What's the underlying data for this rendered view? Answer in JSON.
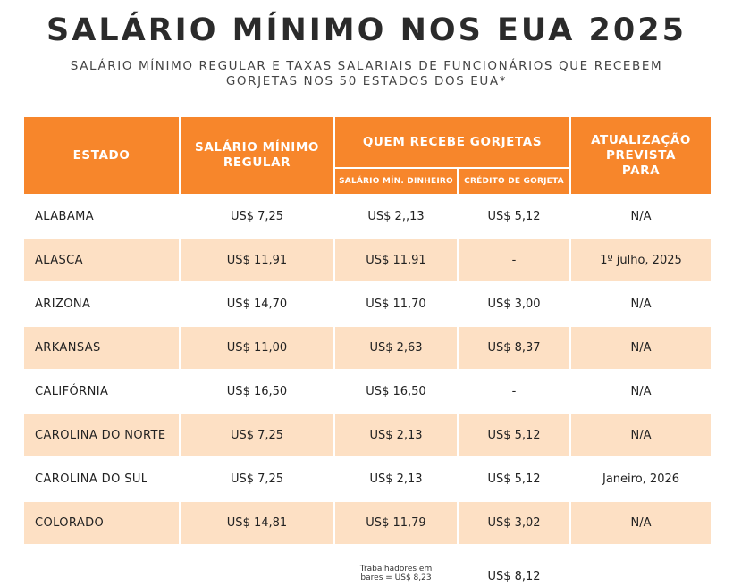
{
  "title": "SALÁRIO MÍNIMO NOS EUA 2025",
  "subtitle_line1": "SALÁRIO MÍNIMO REGULAR E TAXAS SALARIAIS DE FUNCIONÁRIOS QUE RECEBEM",
  "subtitle_line2": "GORJETAS NOS 50 ESTADOS DOS EUA*",
  "headers": {
    "estado": "ESTADO",
    "salario_regular_l1": "SALÁRIO MÍNIMO",
    "salario_regular_l2": "REGULAR",
    "quem_recebe": "QUEM RECEBE GORJETAS",
    "sub_dinheiro": "SALÁRIO MÍN. DINHEIRO",
    "sub_credito": "CRÉDITO DE GORJETA",
    "atualizacao_l1": "ATUALIZAÇÃO",
    "atualizacao_l2": "PREVISTA",
    "atualizacao_l3": "PARA"
  },
  "rows": [
    {
      "state": "ALABAMA",
      "regular": "US$ 7,25",
      "dinheiro": "US$ 2,,13",
      "credito": "US$ 5,12",
      "update": "N/A"
    },
    {
      "state": "ALASCA",
      "regular": "US$ 11,91",
      "dinheiro": "US$ 11,91",
      "credito": "-",
      "update": "1º julho, 2025"
    },
    {
      "state": "ARIZONA",
      "regular": "US$ 14,70",
      "dinheiro": "US$ 11,70",
      "credito": "US$ 3,00",
      "update": "N/A"
    },
    {
      "state": "ARKANSAS",
      "regular": "US$ 11,00",
      "dinheiro": "US$ 2,63",
      "credito": "US$ 8,37",
      "update": "N/A"
    },
    {
      "state": "CALIFÓRNIA",
      "regular": "US$ 16,50",
      "dinheiro": "US$ 16,50",
      "credito": "-",
      "update": "N/A"
    },
    {
      "state": "CAROLINA DO NORTE",
      "regular": "US$ 7,25",
      "dinheiro": "US$ 2,13",
      "credito": "US$ 5,12",
      "update": "N/A"
    },
    {
      "state": "CAROLINA DO SUL",
      "regular": "US$ 7,25",
      "dinheiro": "US$ 2,13",
      "credito": "US$ 5,12",
      "update": "Janeiro, 2026"
    },
    {
      "state": "COLORADO",
      "regular": "US$ 14,81",
      "dinheiro": "US$ 11,79",
      "credito": "US$ 3,02",
      "update": "N/A"
    }
  ],
  "note": {
    "line1": "Trabalhadores em",
    "line2": "bares = US$ 8,23",
    "credito": "US$ 8,12"
  }
}
